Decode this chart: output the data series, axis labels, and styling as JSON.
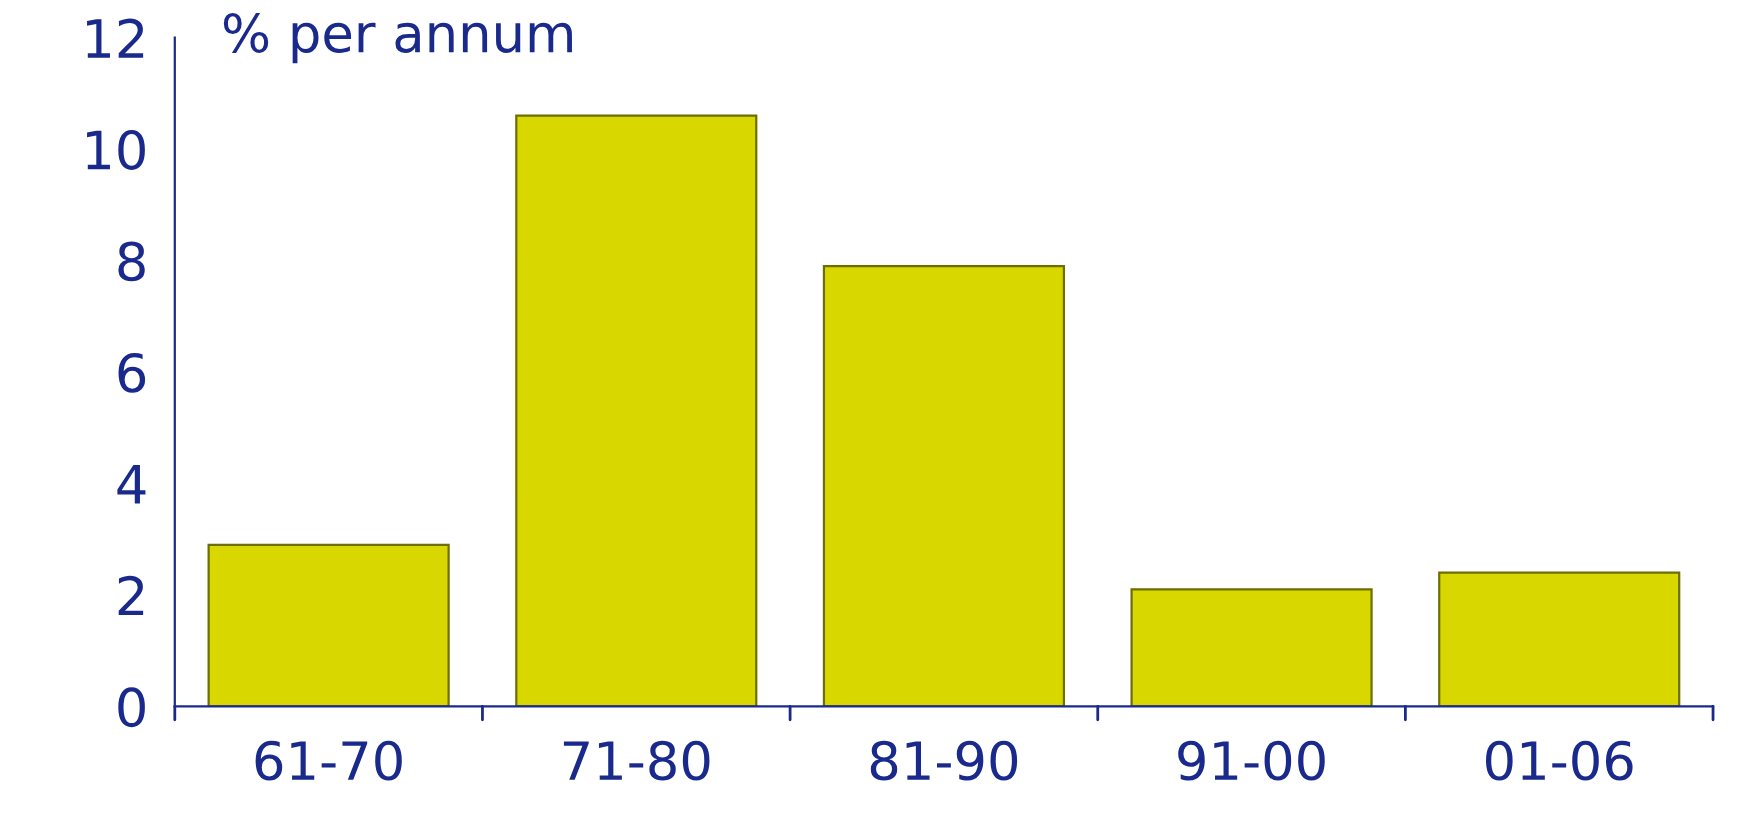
{
  "chart_data": {
    "type": "bar",
    "ylabel": "% per annum",
    "categories": [
      "61-70",
      "71-80",
      "81-90",
      "91-00",
      "01-06"
    ],
    "values": [
      2.9,
      10.6,
      7.9,
      2.1,
      2.4
    ],
    "color": "#d8d800",
    "ylim": [
      0,
      12
    ],
    "yticks": [
      0,
      2,
      4,
      6,
      8,
      10,
      12
    ],
    "grid": false,
    "legend": false
  }
}
